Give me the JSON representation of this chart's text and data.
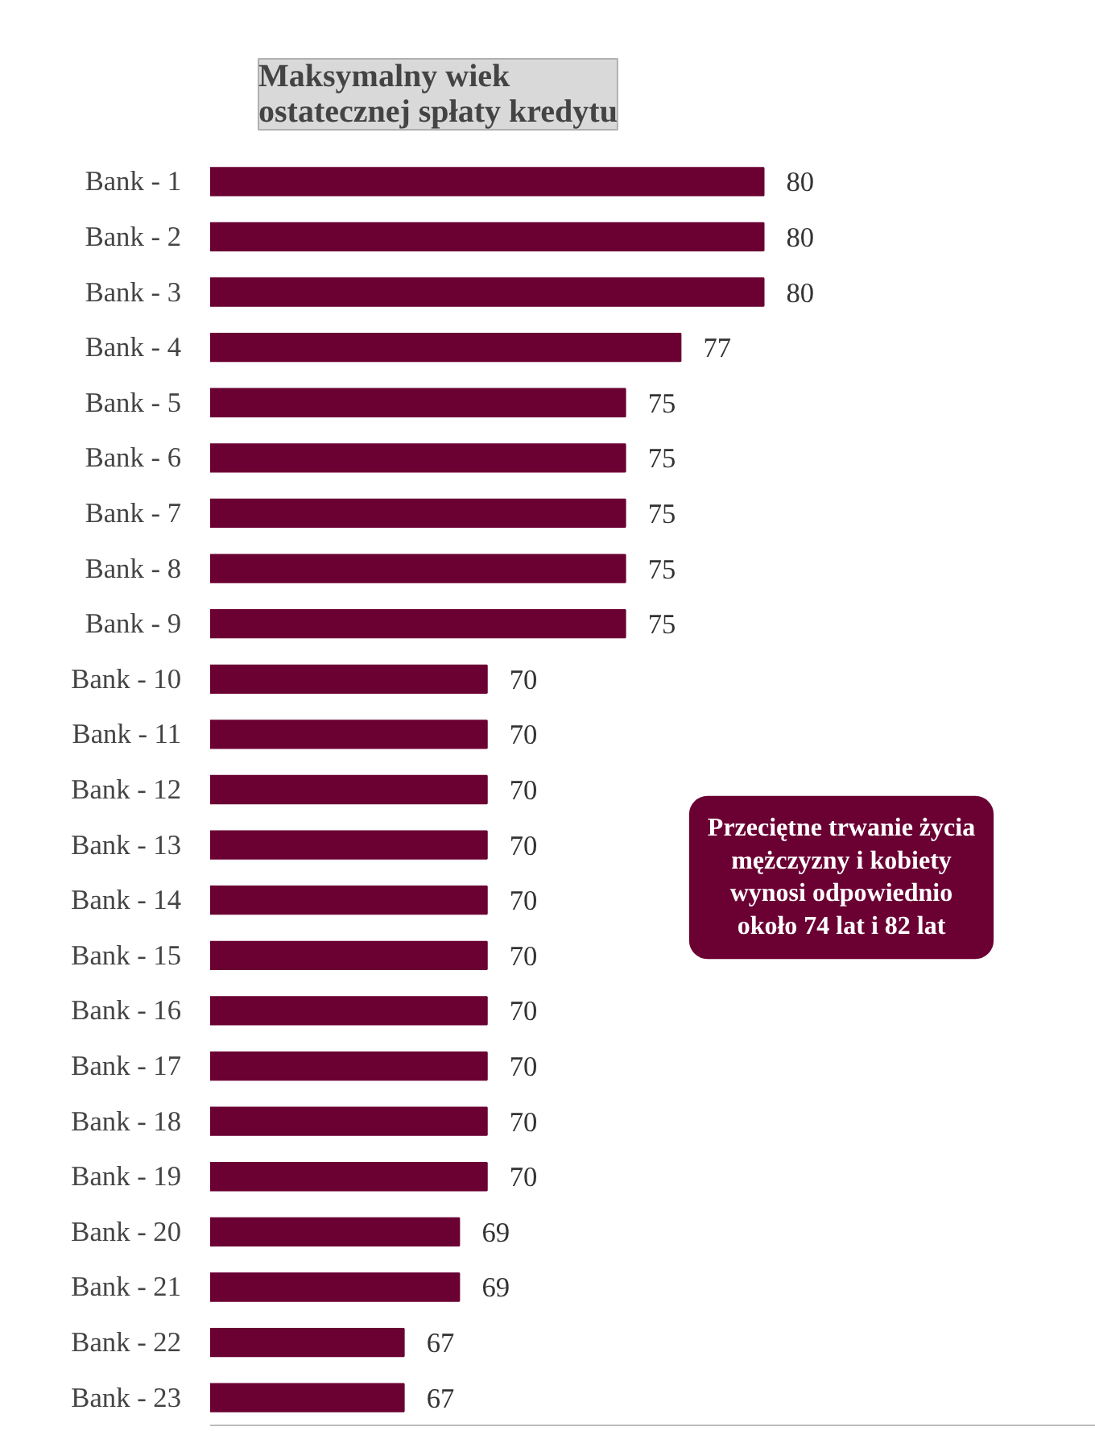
{
  "chart_data": {
    "type": "bar",
    "orientation": "horizontal",
    "title": "Maksymalny wiek\nostatecznej spłaty kredytu",
    "categories": [
      "Bank - 1",
      "Bank - 2",
      "Bank - 3",
      "Bank - 4",
      "Bank - 5",
      "Bank - 6",
      "Bank - 7",
      "Bank - 8",
      "Bank - 9",
      "Bank - 10",
      "Bank - 11",
      "Bank - 12",
      "Bank - 13",
      "Bank - 14",
      "Bank - 15",
      "Bank - 16",
      "Bank - 17",
      "Bank - 18",
      "Bank - 19",
      "Bank - 20",
      "Bank - 21",
      "Bank - 22",
      "Bank - 23"
    ],
    "values": [
      80,
      80,
      80,
      77,
      75,
      75,
      75,
      75,
      75,
      70,
      70,
      70,
      70,
      70,
      70,
      70,
      70,
      70,
      70,
      69,
      69,
      67,
      67
    ],
    "color": "#6b0033",
    "xlim": [
      60,
      92
    ],
    "tick_labels": "y",
    "data_labels": true,
    "grid": false,
    "legend": false,
    "annotations": [
      "Przeciętne trwanie życia\nmężczyzny i kobiety\nwynosi odpowiednio\nokoło 74 lat i 82 lat"
    ]
  }
}
